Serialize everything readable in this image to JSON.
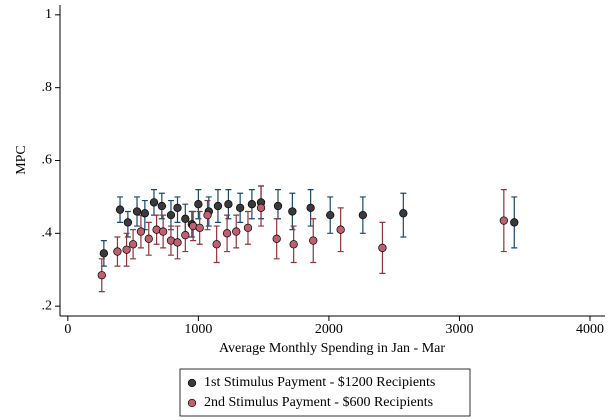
{
  "chart_data": {
    "type": "scatter",
    "x_label": "Average Monthly Spending in Jan - Mar",
    "y_label": "MPC",
    "xlim": [
      -60,
      4115
    ],
    "ylim": [
      0.173,
      1.027
    ],
    "xticks": [
      0,
      1000,
      2000,
      3000,
      4000
    ],
    "yticks": [
      {
        "value": 0.2,
        "label": ".2"
      },
      {
        "value": 0.4,
        "label": ".4"
      },
      {
        "value": 0.6,
        "label": ".6"
      },
      {
        "value": 0.8,
        "label": ".8"
      },
      1
    ],
    "legend": "bottom",
    "series": [
      {
        "name": "1st Stimulus Payment - $1200 Recipients",
        "color": "#3a3a3a",
        "error_color": "#1a476f",
        "x": [
          276,
          400,
          460,
          530,
          590,
          660,
          720,
          790,
          840,
          900,
          950,
          1000,
          1080,
          1150,
          1230,
          1320,
          1410,
          1480,
          1610,
          1720,
          1860,
          2010,
          2260,
          2570,
          3420
        ],
        "values": [
          0.345,
          0.465,
          0.43,
          0.46,
          0.455,
          0.485,
          0.475,
          0.45,
          0.47,
          0.44,
          0.425,
          0.48,
          0.46,
          0.475,
          0.48,
          0.47,
          0.48,
          0.485,
          0.475,
          0.46,
          0.47,
          0.45,
          0.45,
          0.455,
          0.43
        ],
        "lower": [
          0.31,
          0.43,
          0.39,
          0.42,
          0.41,
          0.45,
          0.44,
          0.41,
          0.43,
          0.4,
          0.39,
          0.44,
          0.42,
          0.43,
          0.44,
          0.43,
          0.44,
          0.44,
          0.44,
          0.41,
          0.42,
          0.4,
          0.4,
          0.39,
          0.36
        ],
        "upper": [
          0.38,
          0.5,
          0.46,
          0.5,
          0.49,
          0.52,
          0.51,
          0.49,
          0.5,
          0.48,
          0.46,
          0.52,
          0.5,
          0.52,
          0.52,
          0.51,
          0.52,
          0.53,
          0.52,
          0.51,
          0.52,
          0.5,
          0.5,
          0.51,
          0.5
        ]
      },
      {
        "name": "2nd Stimulus Payment - $600 Recipients",
        "color": "#c0606e",
        "error_color": "#90353b",
        "x": [
          260,
          380,
          450,
          500,
          560,
          620,
          680,
          730,
          790,
          840,
          900,
          960,
          1010,
          1070,
          1140,
          1220,
          1290,
          1380,
          1480,
          1600,
          1730,
          1880,
          2090,
          2410,
          3340
        ],
        "values": [
          0.285,
          0.35,
          0.355,
          0.37,
          0.405,
          0.385,
          0.41,
          0.405,
          0.38,
          0.375,
          0.395,
          0.42,
          0.415,
          0.45,
          0.37,
          0.4,
          0.405,
          0.415,
          0.47,
          0.385,
          0.37,
          0.38,
          0.41,
          0.36,
          0.435
        ],
        "lower": [
          0.24,
          0.31,
          0.31,
          0.33,
          0.36,
          0.34,
          0.37,
          0.36,
          0.34,
          0.33,
          0.35,
          0.38,
          0.37,
          0.41,
          0.32,
          0.35,
          0.36,
          0.37,
          0.42,
          0.33,
          0.32,
          0.32,
          0.35,
          0.29,
          0.35
        ],
        "upper": [
          0.33,
          0.39,
          0.4,
          0.41,
          0.45,
          0.43,
          0.45,
          0.45,
          0.42,
          0.42,
          0.44,
          0.46,
          0.46,
          0.49,
          0.42,
          0.45,
          0.45,
          0.46,
          0.53,
          0.44,
          0.42,
          0.44,
          0.47,
          0.43,
          0.52
        ]
      }
    ]
  }
}
